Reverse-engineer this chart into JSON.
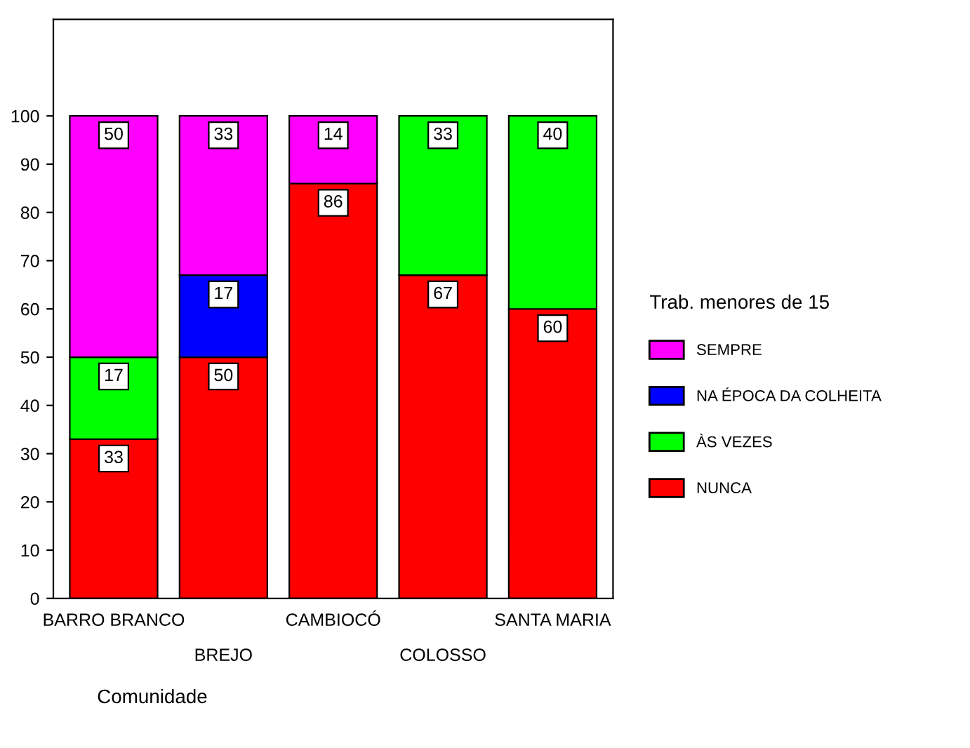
{
  "chart_data": {
    "type": "bar",
    "stacked": true,
    "xlabel": "Comunidade",
    "legend_title": "Trab. menores de 15",
    "categories": [
      "BARRO BRANCO",
      "BREJO",
      "CAMBIOCÓ",
      "COLOSSO",
      "SANTA MARIA"
    ],
    "series": [
      {
        "name": "NUNCA",
        "color": "#ff0000",
        "values": [
          33,
          50,
          86,
          67,
          60
        ]
      },
      {
        "name": "ÀS VEZES",
        "color": "#00ff00",
        "values": [
          17,
          null,
          null,
          33,
          40
        ]
      },
      {
        "name": "NA ÉPOCA DA COLHEITA",
        "color": "#0000ff",
        "values": [
          null,
          17,
          null,
          null,
          null
        ]
      },
      {
        "name": "SEMPRE",
        "color": "#ff00ff",
        "values": [
          50,
          33,
          14,
          null,
          null
        ]
      }
    ],
    "ylim": [
      0,
      120
    ],
    "yticks": [
      0,
      10,
      20,
      30,
      40,
      50,
      60,
      70,
      80,
      90,
      100
    ],
    "grid": false,
    "legend": "right",
    "data_labels": true
  }
}
